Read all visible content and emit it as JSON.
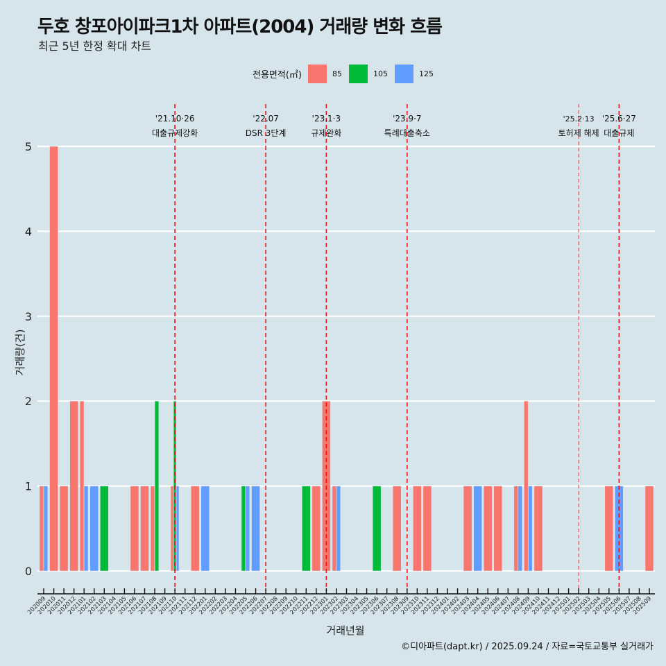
{
  "title": "두호 창포아이파크1차 아파트(2004) 거래량 변화 흐름",
  "subtitle": "최근 5년 한정 확대 차트",
  "caption": "©디아파트(dapt.kr) / 2025.09.24 / 자료=국토교통부 실거래가",
  "legend": {
    "title": "전용면적(㎡)",
    "items": [
      {
        "label": "85",
        "color": "#f8766d"
      },
      {
        "label": "105",
        "color": "#00ba38"
      },
      {
        "label": "125",
        "color": "#619cff"
      }
    ]
  },
  "chart_data": {
    "type": "bar",
    "title": "두호 창포아이파크1차 아파트(2004) 거래량 변화 흐름",
    "xlabel": "거래년월",
    "ylabel": "거래량(건)",
    "ylim": [
      0,
      5
    ],
    "yticks": [
      "0",
      "1",
      "2",
      "3",
      "4",
      "5"
    ],
    "grid": true,
    "legend_position": "top",
    "categories": [
      "202009",
      "202010",
      "202011",
      "202012",
      "202101",
      "202102",
      "202103",
      "202104",
      "202105",
      "202106",
      "202107",
      "202108",
      "202109",
      "202110",
      "202111",
      "202112",
      "202201",
      "202202",
      "202203",
      "202204",
      "202205",
      "202206",
      "202207",
      "202208",
      "202209",
      "202210",
      "202211",
      "202212",
      "202301",
      "202302",
      "202303",
      "202304",
      "202305",
      "202306",
      "202307",
      "202308",
      "202309",
      "202310",
      "202311",
      "202312",
      "202401",
      "202402",
      "202403",
      "202404",
      "202405",
      "202406",
      "202407",
      "202408",
      "202409",
      "202410",
      "202411",
      "202412",
      "202501",
      "202502",
      "202503",
      "202504",
      "202505",
      "202506",
      "202507",
      "202508",
      "202509"
    ],
    "series": [
      {
        "name": "85",
        "color": "#f8766d",
        "values": [
          1,
          5,
          1,
          2,
          2,
          0,
          0,
          0,
          0,
          1,
          1,
          1,
          0,
          1,
          0,
          1,
          0,
          0,
          0,
          0,
          0,
          0,
          0,
          0,
          0,
          0,
          0,
          1,
          2,
          1,
          0,
          0,
          0,
          0,
          0,
          1,
          0,
          1,
          1,
          0,
          0,
          0,
          1,
          0,
          1,
          1,
          0,
          1,
          2,
          1,
          0,
          0,
          0,
          0,
          0,
          0,
          1,
          0,
          0,
          0,
          1
        ]
      },
      {
        "name": "105",
        "color": "#00ba38",
        "values": [
          0,
          0,
          0,
          0,
          0,
          0,
          1,
          0,
          0,
          0,
          0,
          2,
          0,
          2,
          0,
          0,
          0,
          0,
          0,
          0,
          1,
          0,
          0,
          0,
          0,
          0,
          1,
          0,
          0,
          0,
          0,
          0,
          0,
          1,
          0,
          0,
          0,
          0,
          0,
          0,
          0,
          0,
          0,
          0,
          0,
          0,
          0,
          0,
          0,
          0,
          0,
          0,
          0,
          0,
          0,
          0,
          0,
          0,
          0,
          0,
          0
        ]
      },
      {
        "name": "125",
        "color": "#619cff",
        "values": [
          1,
          0,
          0,
          0,
          1,
          1,
          0,
          0,
          0,
          0,
          0,
          0,
          0,
          1,
          0,
          0,
          1,
          0,
          0,
          0,
          1,
          1,
          0,
          0,
          0,
          0,
          0,
          0,
          0,
          1,
          0,
          0,
          0,
          0,
          0,
          0,
          0,
          0,
          0,
          0,
          0,
          0,
          0,
          1,
          0,
          0,
          0,
          1,
          1,
          0,
          0,
          0,
          0,
          0,
          0,
          0,
          0,
          1,
          0,
          0,
          0
        ]
      }
    ],
    "annotations": [
      {
        "x": "202110",
        "date": "'21.10·26",
        "label": "대출규제강화",
        "style": "major"
      },
      {
        "x": "202207",
        "date": "'22.07",
        "label": "DSR 3단계",
        "style": "major"
      },
      {
        "x": "202301",
        "date": "'23.1·3",
        "label": "규제완화",
        "style": "major"
      },
      {
        "x": "202309",
        "date": "'23.9·7",
        "label": "특례대출축소",
        "style": "major"
      },
      {
        "x": "202502",
        "date": "'25.2·13",
        "label": "토허제 해제",
        "style": "minor"
      },
      {
        "x": "202506",
        "date": "'25.6·27",
        "label": "대출규제",
        "style": "major"
      }
    ]
  }
}
